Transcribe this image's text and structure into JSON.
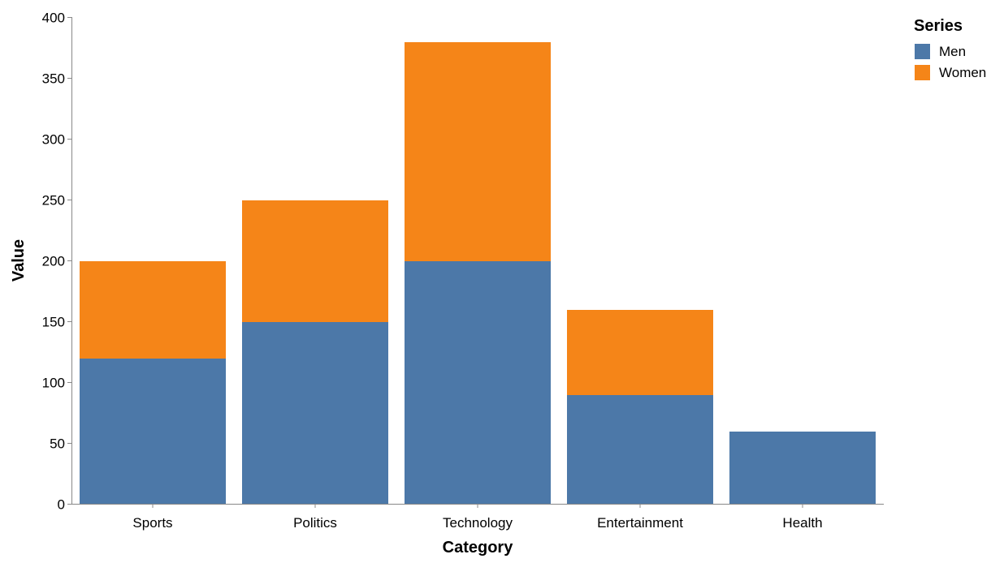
{
  "chart_data": {
    "type": "bar",
    "stacked": true,
    "categories": [
      "Sports",
      "Politics",
      "Technology",
      "Entertainment",
      "Health"
    ],
    "series": [
      {
        "name": "Men",
        "values": [
          120,
          150,
          200,
          90,
          60
        ],
        "color": "#4c78a8"
      },
      {
        "name": "Women",
        "values": [
          80,
          100,
          180,
          70,
          0
        ],
        "color": "#f58518"
      }
    ],
    "xlabel": "Category",
    "ylabel": "Value",
    "ylim": [
      0,
      400
    ],
    "yticks": [
      0,
      50,
      100,
      150,
      200,
      250,
      300,
      350,
      400
    ],
    "grid": false,
    "legend": {
      "title": "Series",
      "position": "top-right"
    }
  }
}
